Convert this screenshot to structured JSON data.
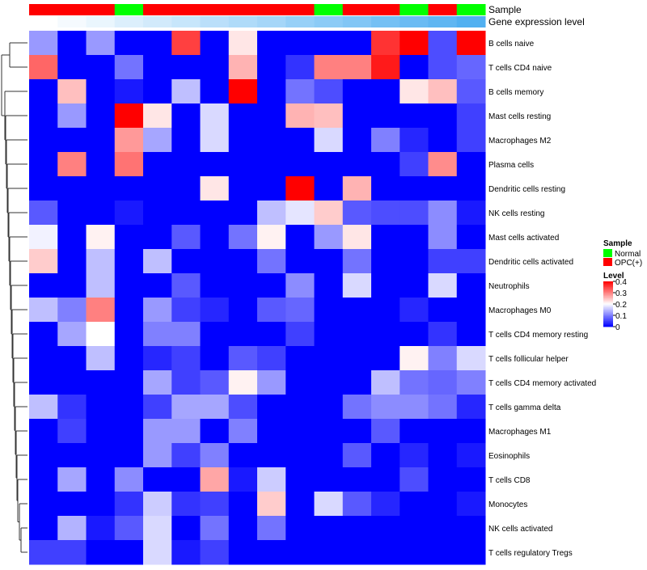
{
  "chart_data": {
    "type": "heatmap",
    "annotation_titles": {
      "sample": "Sample",
      "expression": "Gene expression level"
    },
    "samples": [
      "OPC(+)",
      "OPC(+)",
      "OPC(+)",
      "Normal",
      "OPC(+)",
      "OPC(+)",
      "OPC(+)",
      "OPC(+)",
      "OPC(+)",
      "OPC(+)",
      "Normal",
      "OPC(+)",
      "OPC(+)",
      "Normal",
      "OPC(+)",
      "Normal"
    ],
    "expression_level": [
      0.0,
      0.03,
      0.06,
      0.1,
      0.13,
      0.16,
      0.2,
      0.23,
      0.26,
      0.3,
      0.33,
      0.36,
      0.4,
      0.43,
      0.46,
      0.5
    ],
    "rows": [
      "B cells naive",
      "T cells CD4 naive",
      "B cells memory",
      "Mast cells resting",
      "Macrophages M2",
      "Plasma cells",
      "Dendritic cells resting",
      "NK cells resting",
      "Mast cells activated",
      "Dendritic cells activated",
      "Neutrophils",
      "Macrophages M0",
      "T cells CD4 memory resting",
      "T cells follicular helper",
      "T cells CD4 memory activated",
      "T cells gamma delta",
      "Macrophages M1",
      "Eosinophils",
      "T cells CD8",
      "Monocytes",
      "NK cells activated",
      "T cells regulatory  Tregs"
    ],
    "values": [
      [
        0.12,
        0,
        0.12,
        0,
        0,
        0.35,
        0,
        0.22,
        0,
        0,
        0,
        0,
        0.36,
        0.4,
        0.06,
        0.4
      ],
      [
        0.32,
        0,
        0,
        0.09,
        0,
        0,
        0,
        0.26,
        0,
        0.04,
        0.3,
        0.3,
        0.38,
        0,
        0.06,
        0.08
      ],
      [
        0,
        0.25,
        0,
        0.02,
        0,
        0.15,
        0,
        0.4,
        0,
        0.09,
        0.06,
        0,
        0,
        0.22,
        0.25,
        0.07
      ],
      [
        0,
        0.12,
        0,
        0.4,
        0.22,
        0,
        0.17,
        0,
        0,
        0.26,
        0.25,
        0,
        0,
        0,
        0,
        0.05
      ],
      [
        0,
        0,
        0,
        0.28,
        0.13,
        0,
        0.17,
        0,
        0,
        0,
        0.17,
        0,
        0.1,
        0.03,
        0,
        0.05
      ],
      [
        0,
        0.3,
        0,
        0.31,
        0,
        0,
        0,
        0,
        0,
        0,
        0,
        0,
        0,
        0.05,
        0.29,
        0
      ],
      [
        0,
        0,
        0,
        0,
        0,
        0,
        0.22,
        0,
        0,
        0.4,
        0,
        0.26,
        0,
        0,
        0,
        0
      ],
      [
        0.07,
        0,
        0,
        0.02,
        0,
        0,
        0,
        0,
        0.15,
        0.18,
        0.24,
        0.07,
        0.06,
        0.06,
        0.11,
        0.02
      ],
      [
        0.19,
        0,
        0.21,
        0,
        0,
        0.07,
        0,
        0.09,
        0.21,
        0,
        0.12,
        0.22,
        0,
        0,
        0.11,
        0
      ],
      [
        0.24,
        0,
        0.15,
        0,
        0.15,
        0,
        0,
        0,
        0.09,
        0,
        0,
        0.09,
        0,
        0,
        0.05,
        0.05
      ],
      [
        0,
        0,
        0.15,
        0,
        0,
        0.07,
        0,
        0,
        0,
        0.11,
        0,
        0.17,
        0,
        0,
        0.17,
        0
      ],
      [
        0.15,
        0.1,
        0.3,
        0,
        0.12,
        0.05,
        0.03,
        0,
        0.07,
        0.08,
        0,
        0,
        0,
        0.03,
        0,
        0
      ],
      [
        0,
        0.13,
        0.2,
        0,
        0.1,
        0.1,
        0,
        0,
        0,
        0.05,
        0,
        0,
        0,
        0,
        0.04,
        0
      ],
      [
        0,
        0,
        0.15,
        0,
        0.03,
        0.05,
        0,
        0.07,
        0.05,
        0,
        0,
        0,
        0,
        0.21,
        0.1,
        0.17
      ],
      [
        0,
        0,
        0,
        0,
        0.13,
        0.05,
        0.07,
        0.21,
        0.12,
        0,
        0,
        0,
        0.15,
        0.09,
        0.08,
        0.1
      ],
      [
        0.15,
        0.04,
        0,
        0,
        0.05,
        0.13,
        0.13,
        0.06,
        0,
        0,
        0,
        0.09,
        0.11,
        0.11,
        0.09,
        0.03
      ],
      [
        0,
        0.05,
        0,
        0,
        0.12,
        0.12,
        0,
        0.1,
        0,
        0,
        0,
        0,
        0.07,
        0,
        0,
        0
      ],
      [
        0,
        0,
        0,
        0,
        0.12,
        0.05,
        0.1,
        0,
        0,
        0,
        0,
        0.07,
        0,
        0.03,
        0,
        0.02
      ],
      [
        0,
        0.13,
        0,
        0.11,
        0,
        0,
        0.27,
        0.02,
        0.16,
        0,
        0,
        0,
        0,
        0.06,
        0,
        0
      ],
      [
        0,
        0,
        0,
        0.04,
        0.16,
        0.04,
        0.05,
        0,
        0.24,
        0,
        0.17,
        0.07,
        0.03,
        0,
        0,
        0.02
      ],
      [
        0,
        0.14,
        0.02,
        0.07,
        0.17,
        0,
        0.09,
        0,
        0.09,
        0,
        0,
        0,
        0,
        0,
        0,
        0
      ],
      [
        0.05,
        0.05,
        0,
        0,
        0.17,
        0.02,
        0.05,
        0,
        0,
        0,
        0,
        0,
        0,
        0,
        0,
        0
      ]
    ],
    "legend": {
      "sample_title": "Sample",
      "sample_entries": [
        {
          "label": "Normal",
          "color": "#00ff00"
        },
        {
          "label": "OPC(+)",
          "color": "#ff0000"
        }
      ],
      "level_title": "Level",
      "level_ticks": [
        0.4,
        0.3,
        0.2,
        0.1,
        0
      ],
      "level_tick_labels": [
        "0.4",
        "0.3",
        "0.2",
        "0.1",
        "0"
      ],
      "level_range": [
        0,
        0.4
      ]
    },
    "color_scale": {
      "low": "#0000ff",
      "mid": "#ffffff",
      "high": "#ff0000",
      "domain": [
        0,
        0.2,
        0.4
      ]
    },
    "expression_scale": {
      "low": "#ffffff",
      "high": "#40a8f0"
    },
    "sample_colors": {
      "Normal": "#00ff00",
      "OPC(+)": "#ff0000"
    }
  }
}
